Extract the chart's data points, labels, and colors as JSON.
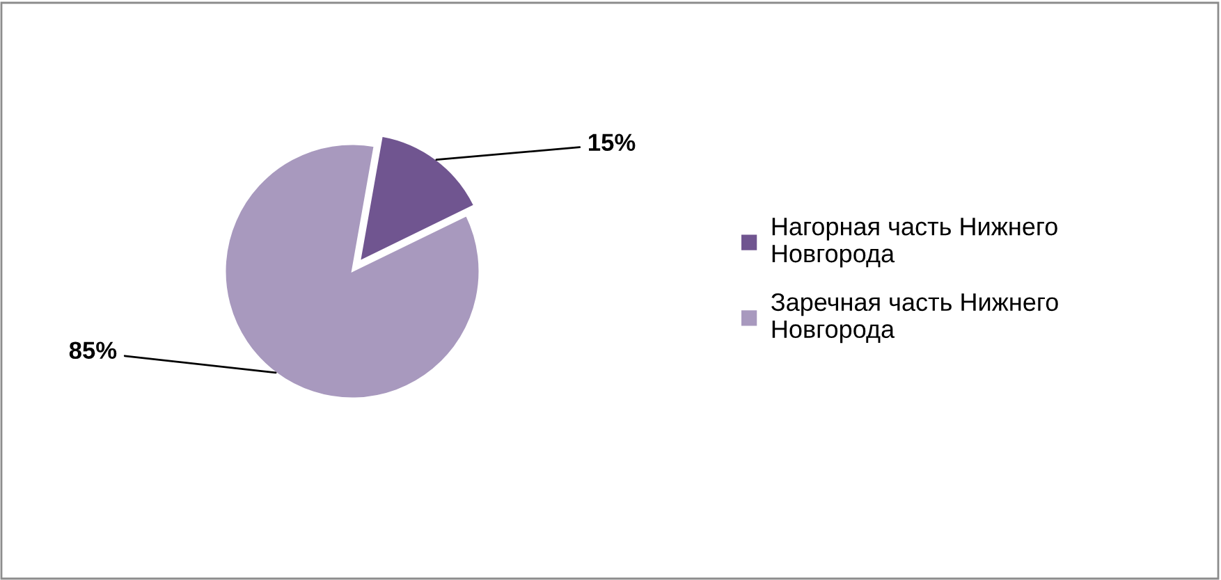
{
  "chart_data": {
    "type": "pie",
    "categories": [
      "Нагорная часть Нижнего Новгорода",
      "Заречная часть Нижнего Новгорода"
    ],
    "values": [
      15,
      85
    ],
    "colors": [
      "#705590",
      "#a899be"
    ],
    "value_labels": [
      "15%",
      "85%"
    ],
    "legend": "right"
  }
}
